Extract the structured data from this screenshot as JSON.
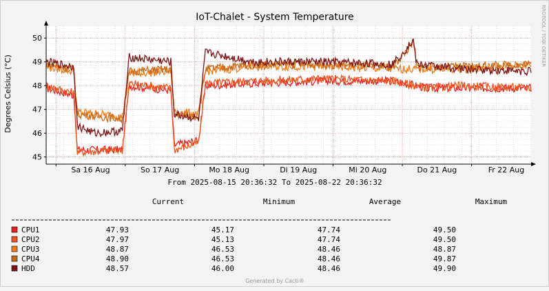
{
  "chart_data": {
    "type": "line",
    "title": "IoT-Chalet - System Temperature",
    "ylabel": "Degrees Celsius (°C)",
    "watermark": "RRDTOOL / TOBI OETIKER",
    "ylim": [
      44.7,
      50.5
    ],
    "yticks": [
      45,
      46,
      47,
      48,
      49,
      50
    ],
    "xlim": [
      "2025-08-15 20:36:32",
      "2025-08-22 20:36:32"
    ],
    "xticks": [
      "Sa 16 Aug",
      "So 17 Aug",
      "Mo 18 Aug",
      "Di 19 Aug",
      "Mi 20 Aug",
      "Do 21 Aug",
      "Fr 22 Aug"
    ],
    "range_text": "From 2025-08-15 20:36:32 To 2025-08-22 20:36:32",
    "grid": true,
    "legend_headers": [
      "Current",
      "Minimum",
      "Average",
      "Maximum"
    ],
    "series": [
      {
        "name": "CPU1",
        "color": "#e8231f",
        "current": "47.93",
        "minimum": "45.17",
        "average": "47.74",
        "maximum": "49.50",
        "values": [
          [
            0,
            47.9
          ],
          [
            0.4,
            47.6
          ],
          [
            0.45,
            45.3
          ],
          [
            1.1,
            45.3
          ],
          [
            1.2,
            48.0
          ],
          [
            1.8,
            47.8
          ],
          [
            1.85,
            45.5
          ],
          [
            2.2,
            45.7
          ],
          [
            2.3,
            48.0
          ],
          [
            3.0,
            48.1
          ],
          [
            4.0,
            48.2
          ],
          [
            5.0,
            48.2
          ],
          [
            5.5,
            47.9
          ],
          [
            6.0,
            47.9
          ],
          [
            7.0,
            47.9
          ]
        ]
      },
      {
        "name": "CPU2",
        "color": "#f0551e",
        "current": "47.97",
        "minimum": "45.13",
        "average": "47.74",
        "maximum": "49.50",
        "values": [
          [
            0,
            48.0
          ],
          [
            0.4,
            47.7
          ],
          [
            0.45,
            45.2
          ],
          [
            1.1,
            45.3
          ],
          [
            1.2,
            48.1
          ],
          [
            1.8,
            47.9
          ],
          [
            1.85,
            45.3
          ],
          [
            2.2,
            45.6
          ],
          [
            2.3,
            48.1
          ],
          [
            3.0,
            48.2
          ],
          [
            4.0,
            48.3
          ],
          [
            5.0,
            48.2
          ],
          [
            5.5,
            47.9
          ],
          [
            6.0,
            48.0
          ],
          [
            7.0,
            47.9
          ]
        ]
      },
      {
        "name": "CPU3",
        "color": "#f07b1d",
        "current": "48.87",
        "minimum": "46.53",
        "average": "48.46",
        "maximum": "48.87",
        "values": [
          [
            0,
            48.8
          ],
          [
            0.4,
            48.6
          ],
          [
            0.45,
            46.9
          ],
          [
            1.1,
            46.7
          ],
          [
            1.2,
            48.5
          ],
          [
            1.8,
            48.6
          ],
          [
            1.85,
            46.9
          ],
          [
            2.2,
            46.8
          ],
          [
            2.3,
            48.6
          ],
          [
            3.0,
            48.8
          ],
          [
            4.0,
            48.8
          ],
          [
            5.0,
            48.7
          ],
          [
            6.0,
            48.7
          ],
          [
            7.0,
            48.9
          ]
        ]
      },
      {
        "name": "CPU4",
        "color": "#c76a16",
        "current": "48.90",
        "minimum": "46.53",
        "average": "48.46",
        "maximum": "49.87",
        "values": [
          [
            0,
            48.9
          ],
          [
            0.4,
            48.7
          ],
          [
            0.45,
            46.8
          ],
          [
            1.1,
            46.6
          ],
          [
            1.2,
            48.6
          ],
          [
            1.8,
            48.7
          ],
          [
            1.85,
            46.8
          ],
          [
            2.2,
            46.7
          ],
          [
            2.3,
            48.7
          ],
          [
            3.0,
            48.9
          ],
          [
            4.0,
            48.9
          ],
          [
            5.0,
            48.8
          ],
          [
            5.3,
            49.8
          ],
          [
            5.35,
            48.8
          ],
          [
            6.0,
            48.8
          ],
          [
            7.0,
            48.9
          ]
        ]
      },
      {
        "name": "HDD",
        "color": "#7b1414",
        "current": "48.57",
        "minimum": "46.00",
        "average": "48.46",
        "maximum": "49.90",
        "values": [
          [
            0,
            49.0
          ],
          [
            0.4,
            48.8
          ],
          [
            0.45,
            46.3
          ],
          [
            0.7,
            46.0
          ],
          [
            1.1,
            46.1
          ],
          [
            1.2,
            49.2
          ],
          [
            1.8,
            49.0
          ],
          [
            1.85,
            46.8
          ],
          [
            2.2,
            46.6
          ],
          [
            2.3,
            49.4
          ],
          [
            3.0,
            49.0
          ],
          [
            4.0,
            49.0
          ],
          [
            5.0,
            48.9
          ],
          [
            5.3,
            49.9
          ],
          [
            5.35,
            48.9
          ],
          [
            6.0,
            48.7
          ],
          [
            7.0,
            48.6
          ]
        ]
      }
    ]
  },
  "footer": "Generated by Cacti®"
}
